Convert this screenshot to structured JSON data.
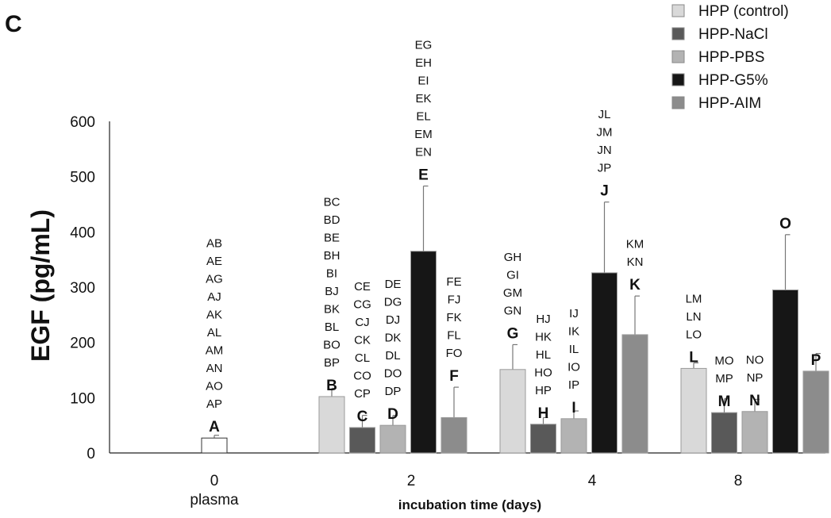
{
  "chart_data": {
    "type": "bar",
    "panel_label": "C",
    "ylabel": "EGF (pg/mL)",
    "xlabel": "incubation time (days)",
    "ylim": [
      0,
      600
    ],
    "yticks": [
      "0",
      "100",
      "200",
      "300",
      "400",
      "500",
      "600"
    ],
    "legend_position": "top-right",
    "legend": [
      {
        "name": "HPP (control)",
        "color": "#d9d9d9"
      },
      {
        "name": "HPP-NaCl",
        "color": "#595959"
      },
      {
        "name": "HPP-PBS",
        "color": "#b3b3b3"
      },
      {
        "name": "HPP-G5%",
        "color": "#161616"
      },
      {
        "name": "HPP-AIM",
        "color": "#8c8c8c"
      }
    ],
    "groups": [
      {
        "label": "0",
        "sublabel": "plasma",
        "bars": [
          {
            "series": "plasma",
            "color": "#ffffff",
            "value": 27,
            "error": 5,
            "letter": "A",
            "annotations": [
              "AB",
              "AE",
              "AG",
              "AJ",
              "AK",
              "AL",
              "AM",
              "AN",
              "AO",
              "AP"
            ]
          }
        ]
      },
      {
        "label": "2",
        "sublabel": "",
        "bars": [
          {
            "series": "HPP (control)",
            "color": "#d9d9d9",
            "value": 102,
            "error": 15,
            "letter": "B",
            "annotations": [
              "BC",
              "BD",
              "BE",
              "BH",
              "BI",
              "BJ",
              "BK",
              "BL",
              "BO",
              "BP"
            ]
          },
          {
            "series": "HPP-NaCl",
            "color": "#595959",
            "value": 46,
            "error": 22,
            "letter": "C",
            "annotations": [
              "CE",
              "CG",
              "CJ",
              "CK",
              "CL",
              "CO",
              "CP"
            ]
          },
          {
            "series": "HPP-PBS",
            "color": "#b3b3b3",
            "value": 50,
            "error": 18,
            "letter": "D",
            "annotations": [
              "DE",
              "DG",
              "DJ",
              "DK",
              "DL",
              "DO",
              "DP"
            ]
          },
          {
            "series": "HPP-G5%",
            "color": "#161616",
            "value": 365,
            "error": 118,
            "letter": "E",
            "annotations": [
              "EG",
              "EH",
              "EI",
              "EK",
              "EL",
              "EM",
              "EN"
            ]
          },
          {
            "series": "HPP-AIM",
            "color": "#8c8c8c",
            "value": 64,
            "error": 55,
            "letter": "F",
            "annotations": [
              "FE",
              "FJ",
              "FK",
              "FL",
              "FO"
            ]
          }
        ]
      },
      {
        "label": "4",
        "sublabel": "",
        "bars": [
          {
            "series": "HPP (control)",
            "color": "#d9d9d9",
            "value": 151,
            "error": 45,
            "letter": "G",
            "annotations": [
              "GH",
              "GI",
              "GM",
              "GN"
            ]
          },
          {
            "series": "HPP-NaCl",
            "color": "#595959",
            "value": 52,
            "error": 12,
            "letter": "H",
            "annotations": [
              "HJ",
              "HK",
              "HL",
              "HO",
              "HP"
            ]
          },
          {
            "series": "HPP-PBS",
            "color": "#b3b3b3",
            "value": 62,
            "error": 14,
            "letter": "I",
            "annotations": [
              "IJ",
              "IK",
              "IL",
              "IO",
              "IP"
            ]
          },
          {
            "series": "HPP-G5%",
            "color": "#161616",
            "value": 326,
            "error": 128,
            "letter": "J",
            "annotations": [
              "JL",
              "JM",
              "JN",
              "JP"
            ]
          },
          {
            "series": "HPP-AIM",
            "color": "#8c8c8c",
            "value": 214,
            "error": 70,
            "letter": "K",
            "annotations": [
              "KM",
              "KN"
            ]
          }
        ]
      },
      {
        "label": "8",
        "sublabel": "",
        "bars": [
          {
            "series": "HPP (control)",
            "color": "#d9d9d9",
            "value": 153,
            "error": 10,
            "letter": "L",
            "annotations": [
              "LM",
              "LN",
              "LO"
            ]
          },
          {
            "series": "HPP-NaCl",
            "color": "#595959",
            "value": 73,
            "error": 25,
            "letter": "M",
            "annotations": [
              "MO",
              "MP"
            ]
          },
          {
            "series": "HPP-PBS",
            "color": "#b3b3b3",
            "value": 75,
            "error": 22,
            "letter": "N",
            "annotations": [
              "NO",
              "NP"
            ]
          },
          {
            "series": "HPP-G5%",
            "color": "#161616",
            "value": 295,
            "error": 100,
            "letter": "O",
            "annotations": []
          },
          {
            "series": "HPP-AIM",
            "color": "#8c8c8c",
            "value": 148,
            "error": 32,
            "letter": "P",
            "annotations": []
          }
        ]
      }
    ]
  }
}
